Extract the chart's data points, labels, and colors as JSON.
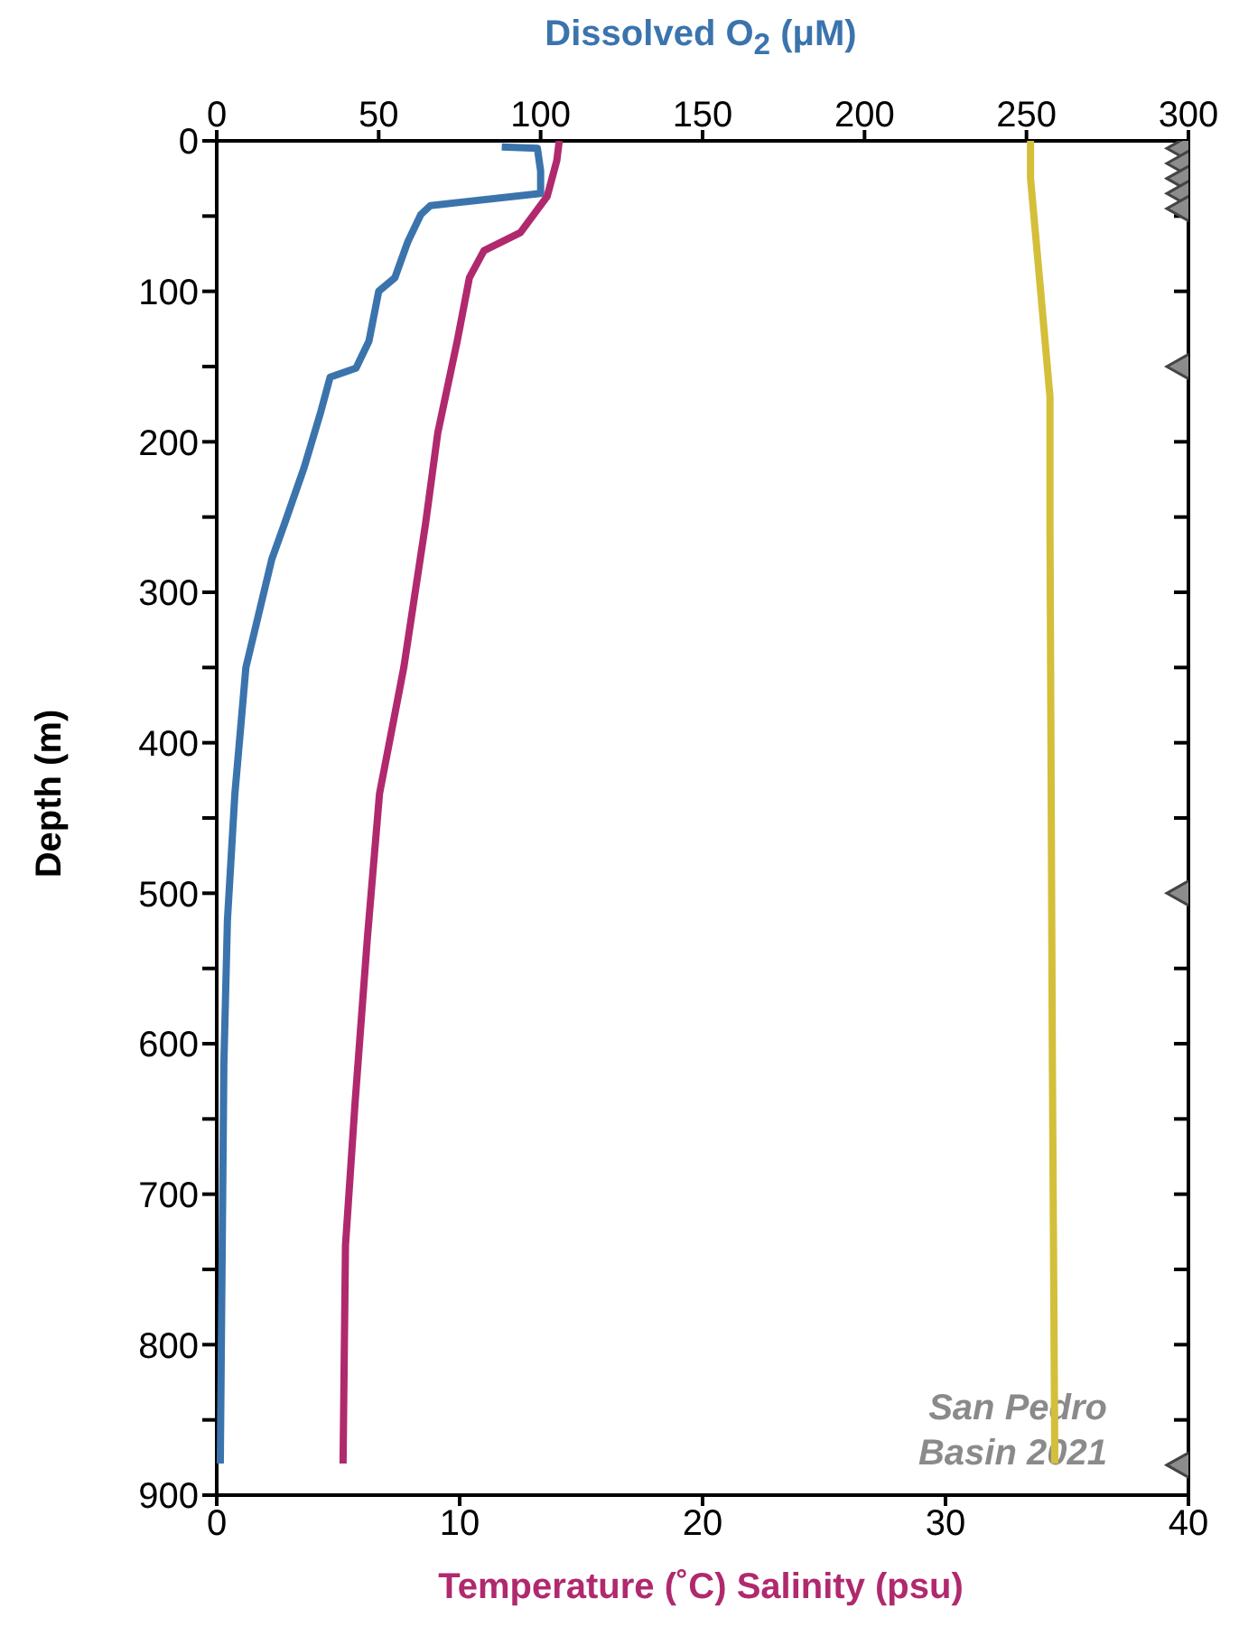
{
  "chart_data": {
    "type": "line",
    "xlabel": "Temperature (˚C) Salinity (psu)",
    "x2label": "Dissolved O$_{2}$ (μM)",
    "ylabel": "Depth (m)",
    "xlim": [
      0,
      40
    ],
    "xticks": [
      0,
      10,
      20,
      30,
      40
    ],
    "x2lim": [
      0,
      300
    ],
    "x2ticks": [
      0,
      50,
      100,
      150,
      200,
      250,
      300
    ],
    "ylim": [
      900,
      0
    ],
    "yticks": [
      0,
      {
        "value": 50,
        "label": null
      },
      100,
      {
        "value": 150,
        "label": null
      },
      200,
      {
        "value": 250,
        "label": null
      },
      300,
      {
        "value": 350,
        "label": null
      },
      400,
      {
        "value": 450,
        "label": null
      },
      500,
      {
        "value": 550,
        "label": null
      },
      600,
      {
        "value": 650,
        "label": null
      },
      700,
      {
        "value": 750,
        "label": null
      },
      800,
      {
        "value": 850,
        "label": null
      },
      900
    ],
    "marker": "none",
    "annotations": [
      "San Pedro\nBasin 2021"
    ],
    "series": [
      {
        "color": "#3b74ad",
        "axis": "x2",
        "x": [
          88,
          99,
          100,
          100,
          66,
          63,
          59,
          55,
          50,
          47,
          43,
          35,
          32,
          27,
          21,
          17,
          13,
          9,
          5.6,
          3.3,
          2.2,
          1.7,
          1.1
        ],
        "values": [
          4,
          5,
          20,
          35,
          43,
          49,
          67,
          91,
          100,
          133,
          151,
          157,
          181,
          217,
          254,
          278,
          314,
          350,
          434,
          518,
          614,
          734,
          879
        ]
      },
      {
        "color": "#b0296e",
        "x": [
          14.1,
          14.0,
          13.6,
          12.5,
          11.0,
          10.4,
          9.9,
          9.1,
          8.6,
          7.7,
          6.7,
          6.2,
          5.7,
          5.3,
          5.2
        ],
        "values": [
          0,
          13,
          37,
          61,
          73,
          91,
          133,
          194,
          254,
          350,
          434,
          530,
          638,
          734,
          879
        ]
      },
      {
        "color": "#d4bf3a",
        "x": [
          33.5,
          33.5,
          33.9,
          34.3,
          34.3,
          34.4,
          34.5
        ],
        "values": [
          0,
          25,
          97,
          170,
          254,
          614,
          879
        ]
      },
      {
        "type": "scatter",
        "marker": "triangle",
        "color": "#8c8c8c",
        "axis": "x2",
        "x": [
          300,
          300,
          300,
          300,
          300,
          300,
          300,
          300
        ],
        "values": [
          5,
          15,
          25,
          35,
          45,
          150,
          500,
          880
        ]
      }
    ]
  }
}
